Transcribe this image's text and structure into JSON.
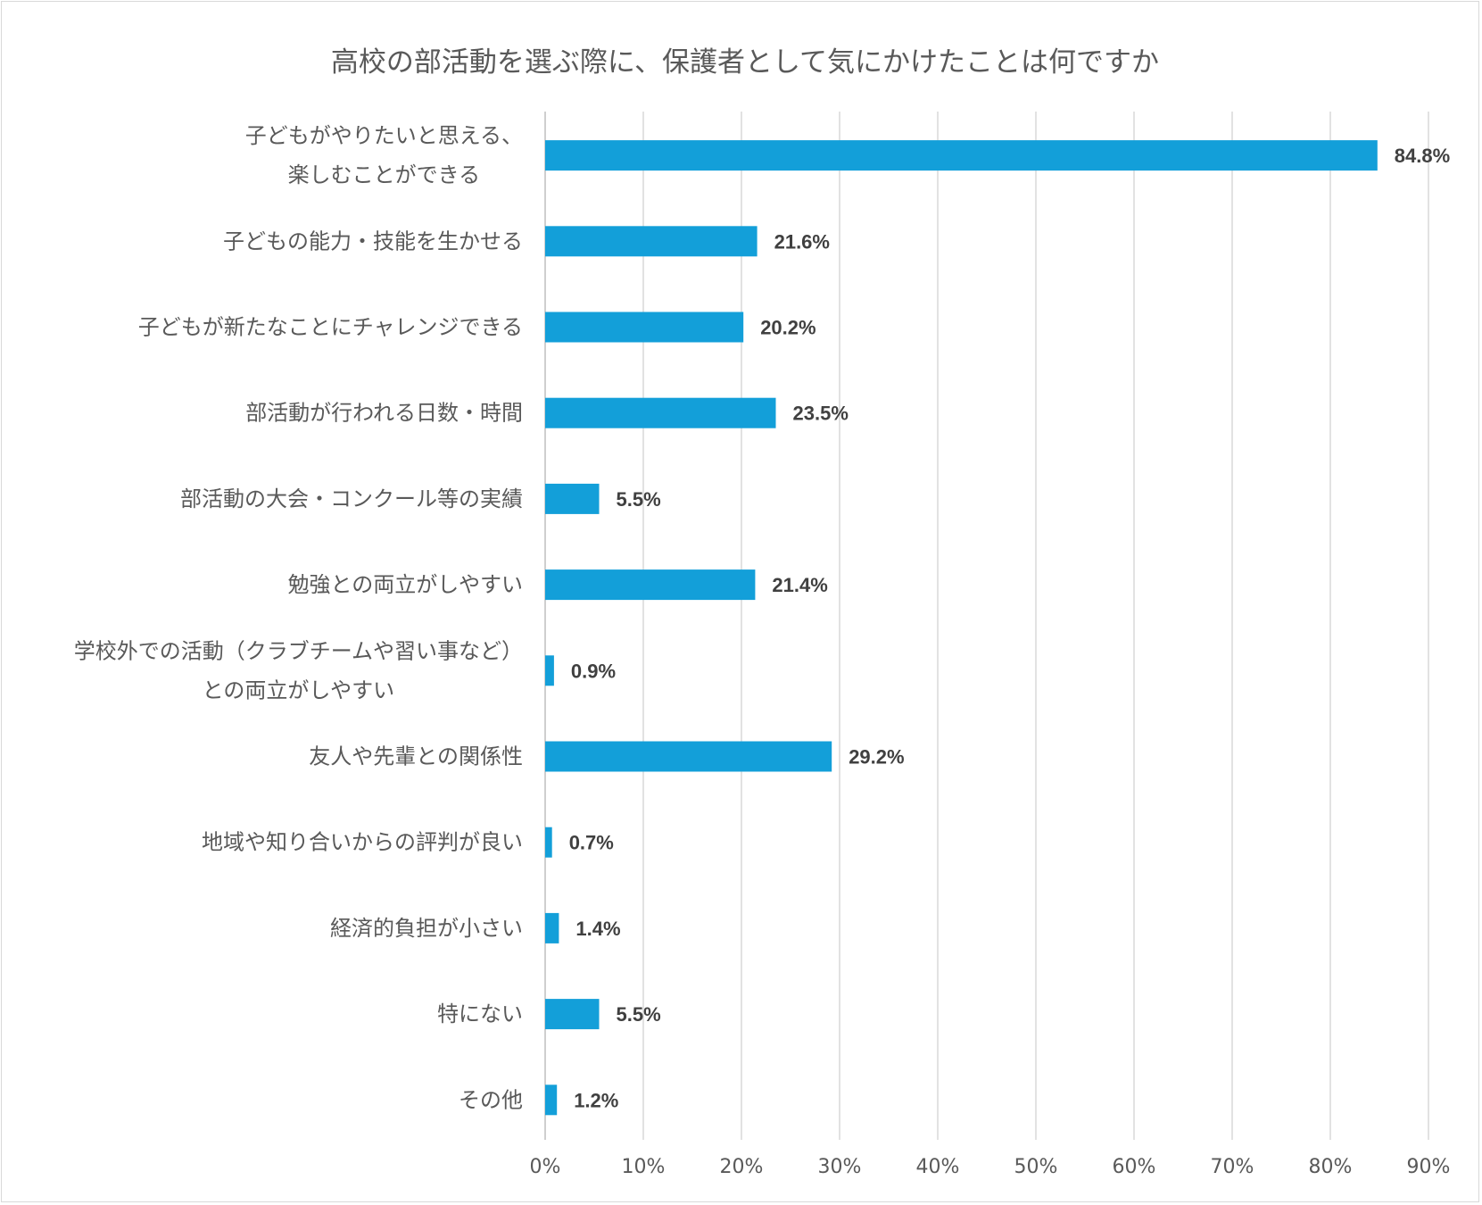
{
  "chart_data": {
    "type": "bar",
    "orientation": "horizontal",
    "title": "高校の部活動を選ぶ際に、保護者として気にかけたことは何ですか",
    "categories": [
      [
        "子どもがやりたいと思える、",
        "楽しむことができる"
      ],
      [
        "子どもの能力・技能を生かせる"
      ],
      [
        "子どもが新たなことにチャレンジできる"
      ],
      [
        "部活動が行われる日数・時間"
      ],
      [
        "部活動の大会・コンクール等の実績"
      ],
      [
        "勉強との両立がしやすい"
      ],
      [
        "学校外での活動（クラブチームや習い事など）",
        "との両立がしやすい"
      ],
      [
        "友人や先輩との関係性"
      ],
      [
        "地域や知り合いからの評判が良い"
      ],
      [
        "経済的負担が小さい"
      ],
      [
        "特にない"
      ],
      [
        "その他"
      ]
    ],
    "values": [
      84.8,
      21.6,
      20.2,
      23.5,
      5.5,
      21.4,
      0.9,
      29.2,
      0.7,
      1.4,
      5.5,
      1.2
    ],
    "value_labels": [
      "84.8%",
      "21.6%",
      "20.2%",
      "23.5%",
      "5.5%",
      "21.4%",
      "0.9%",
      "29.2%",
      "0.7%",
      "1.4%",
      "5.5%",
      "1.2%"
    ],
    "xlim": [
      0,
      90
    ],
    "xticks": [
      0,
      10,
      20,
      30,
      40,
      50,
      60,
      70,
      80,
      90
    ],
    "xtick_labels": [
      "0%",
      "10%",
      "20%",
      "30%",
      "40%",
      "50%",
      "60%",
      "70%",
      "80%",
      "90%"
    ],
    "grid": true,
    "legend": "none",
    "bar_color": "#139fd9",
    "text_color": "#595959",
    "value_label_color": "#404040",
    "grid_color": "#d9d9d9"
  }
}
